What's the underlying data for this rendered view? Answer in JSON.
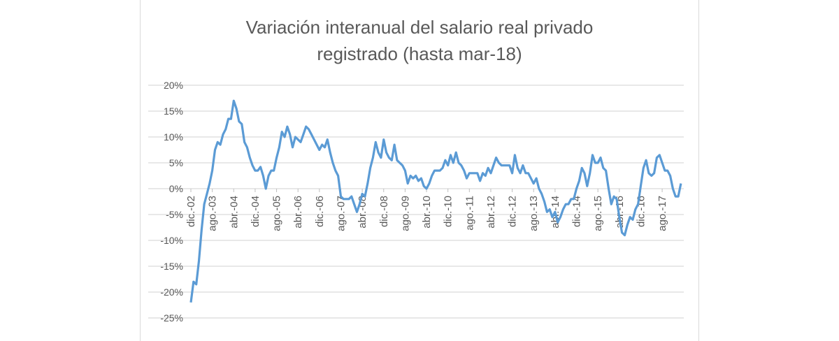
{
  "chart_data": {
    "type": "line",
    "title_lines": [
      "Variación interanual del salario real privado",
      "registrado (hasta mar-18)"
    ],
    "xlabel": "",
    "ylabel": "",
    "frequency": "monthly",
    "x_range": [
      "dic.-02",
      "mar.-18"
    ],
    "x_tick_labels": [
      "dic.-02",
      "ago.-03",
      "abr.-04",
      "dic.-04",
      "ago.-05",
      "abr.-06",
      "dic.-06",
      "ago.-07",
      "abr.-08",
      "dic.-08",
      "ago.-09",
      "abr.-10",
      "dic.-10",
      "ago.-11",
      "abr.-12",
      "dic.-12",
      "ago.-13",
      "abr.-14",
      "dic.-14",
      "ago.-15",
      "abr.-16",
      "dic.-16",
      "ago.-17"
    ],
    "x_tick_every_months": 8,
    "y_ticks": [
      20,
      15,
      10,
      5,
      0,
      -5,
      -10,
      -15,
      -20,
      -25
    ],
    "y_tick_labels": [
      "20%",
      "15%",
      "10%",
      "5%",
      "0%",
      "-5%",
      "-10%",
      "-15%",
      "-20%",
      "-25%"
    ],
    "ylim": [
      -25,
      20
    ],
    "y_unit": "%",
    "grid": "horizontal",
    "legend": "none",
    "series": [
      {
        "color": "#5B9BD5",
        "values": [
          -22,
          -18,
          -18.5,
          -14,
          -8,
          -3,
          -1,
          1,
          3.5,
          7.5,
          9,
          8.5,
          10.5,
          11.5,
          13.5,
          13.5,
          17,
          15.5,
          13,
          12.5,
          9,
          8,
          6,
          4.5,
          3.5,
          3.5,
          4.2,
          2.5,
          0,
          2.5,
          3.5,
          3.5,
          6,
          8,
          11,
          10,
          12,
          10.5,
          8,
          10,
          9.5,
          9,
          10.5,
          12,
          11.5,
          10.5,
          9.5,
          8.5,
          7.5,
          8.5,
          8,
          9.5,
          7,
          5,
          3.5,
          2.5,
          -1.5,
          -2,
          -2,
          -2,
          -1.5,
          -3,
          -4.5,
          -3,
          -1,
          -1.5,
          1,
          4,
          6,
          9,
          7,
          6,
          9.5,
          7,
          6,
          5.5,
          8.5,
          5.5,
          5,
          4.5,
          3.5,
          1,
          2.5,
          2,
          2.5,
          1.5,
          2,
          0.5,
          0,
          1,
          2.5,
          3.5,
          3.5,
          3.5,
          4,
          5.5,
          4.5,
          6.5,
          5,
          7,
          5,
          4.5,
          3.5,
          2,
          3,
          3,
          3,
          3,
          1.5,
          3,
          2.5,
          4,
          3,
          4.5,
          6,
          5,
          4.5,
          4.5,
          4.5,
          4.5,
          3,
          6.5,
          4,
          3,
          4.5,
          3,
          3,
          2,
          1,
          2,
          0,
          -1,
          -2.5,
          -4.5,
          -4,
          -5.5,
          -4.5,
          -6.5,
          -5.5,
          -4,
          -3,
          -3,
          -2,
          -2,
          0,
          1.5,
          4,
          3,
          0.5,
          3,
          6.5,
          5,
          5,
          6,
          4,
          3.5,
          0,
          -3,
          -1.5,
          -2,
          -5.5,
          -8.5,
          -9,
          -7,
          -5.5,
          -6,
          -4,
          -3,
          0.5,
          4,
          5.5,
          3,
          2.5,
          3,
          6,
          6.5,
          5,
          3.5,
          3.5,
          2.5,
          0,
          -1.5,
          -1.5,
          1
        ]
      }
    ]
  }
}
